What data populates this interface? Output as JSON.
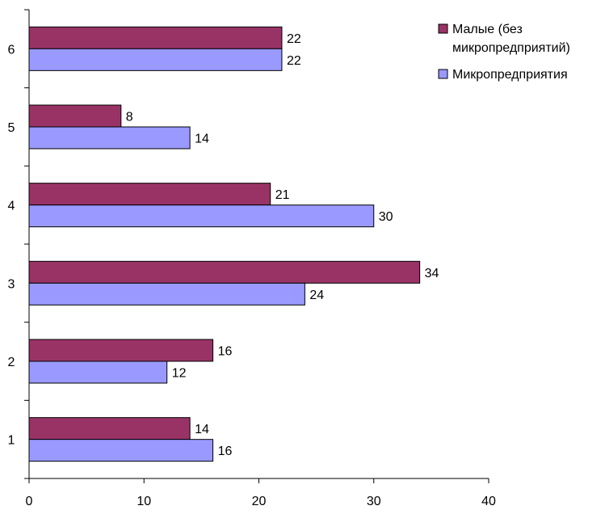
{
  "chart_data": {
    "type": "bar",
    "orientation": "horizontal",
    "categories": [
      "1",
      "2",
      "3",
      "4",
      "5",
      "6"
    ],
    "series": [
      {
        "name": "Малые (без микропредприятий)",
        "legend_lines": [
          "Малые (без",
          "микропредприятий)"
        ],
        "color": "#993366",
        "values": [
          14,
          16,
          34,
          21,
          8,
          22
        ]
      },
      {
        "name": "Микропредприятия",
        "legend_lines": [
          "Микропредприятия"
        ],
        "color": "#9999ff",
        "values": [
          16,
          12,
          24,
          30,
          14,
          22
        ]
      }
    ],
    "xlim": [
      0,
      40
    ],
    "xticks": [
      0,
      10,
      20,
      30,
      40
    ],
    "tick_labels": [
      "0",
      "10",
      "20",
      "30",
      "40"
    ],
    "grid": false,
    "legend_position": "top-right",
    "title": "",
    "xlabel": "",
    "ylabel": ""
  }
}
